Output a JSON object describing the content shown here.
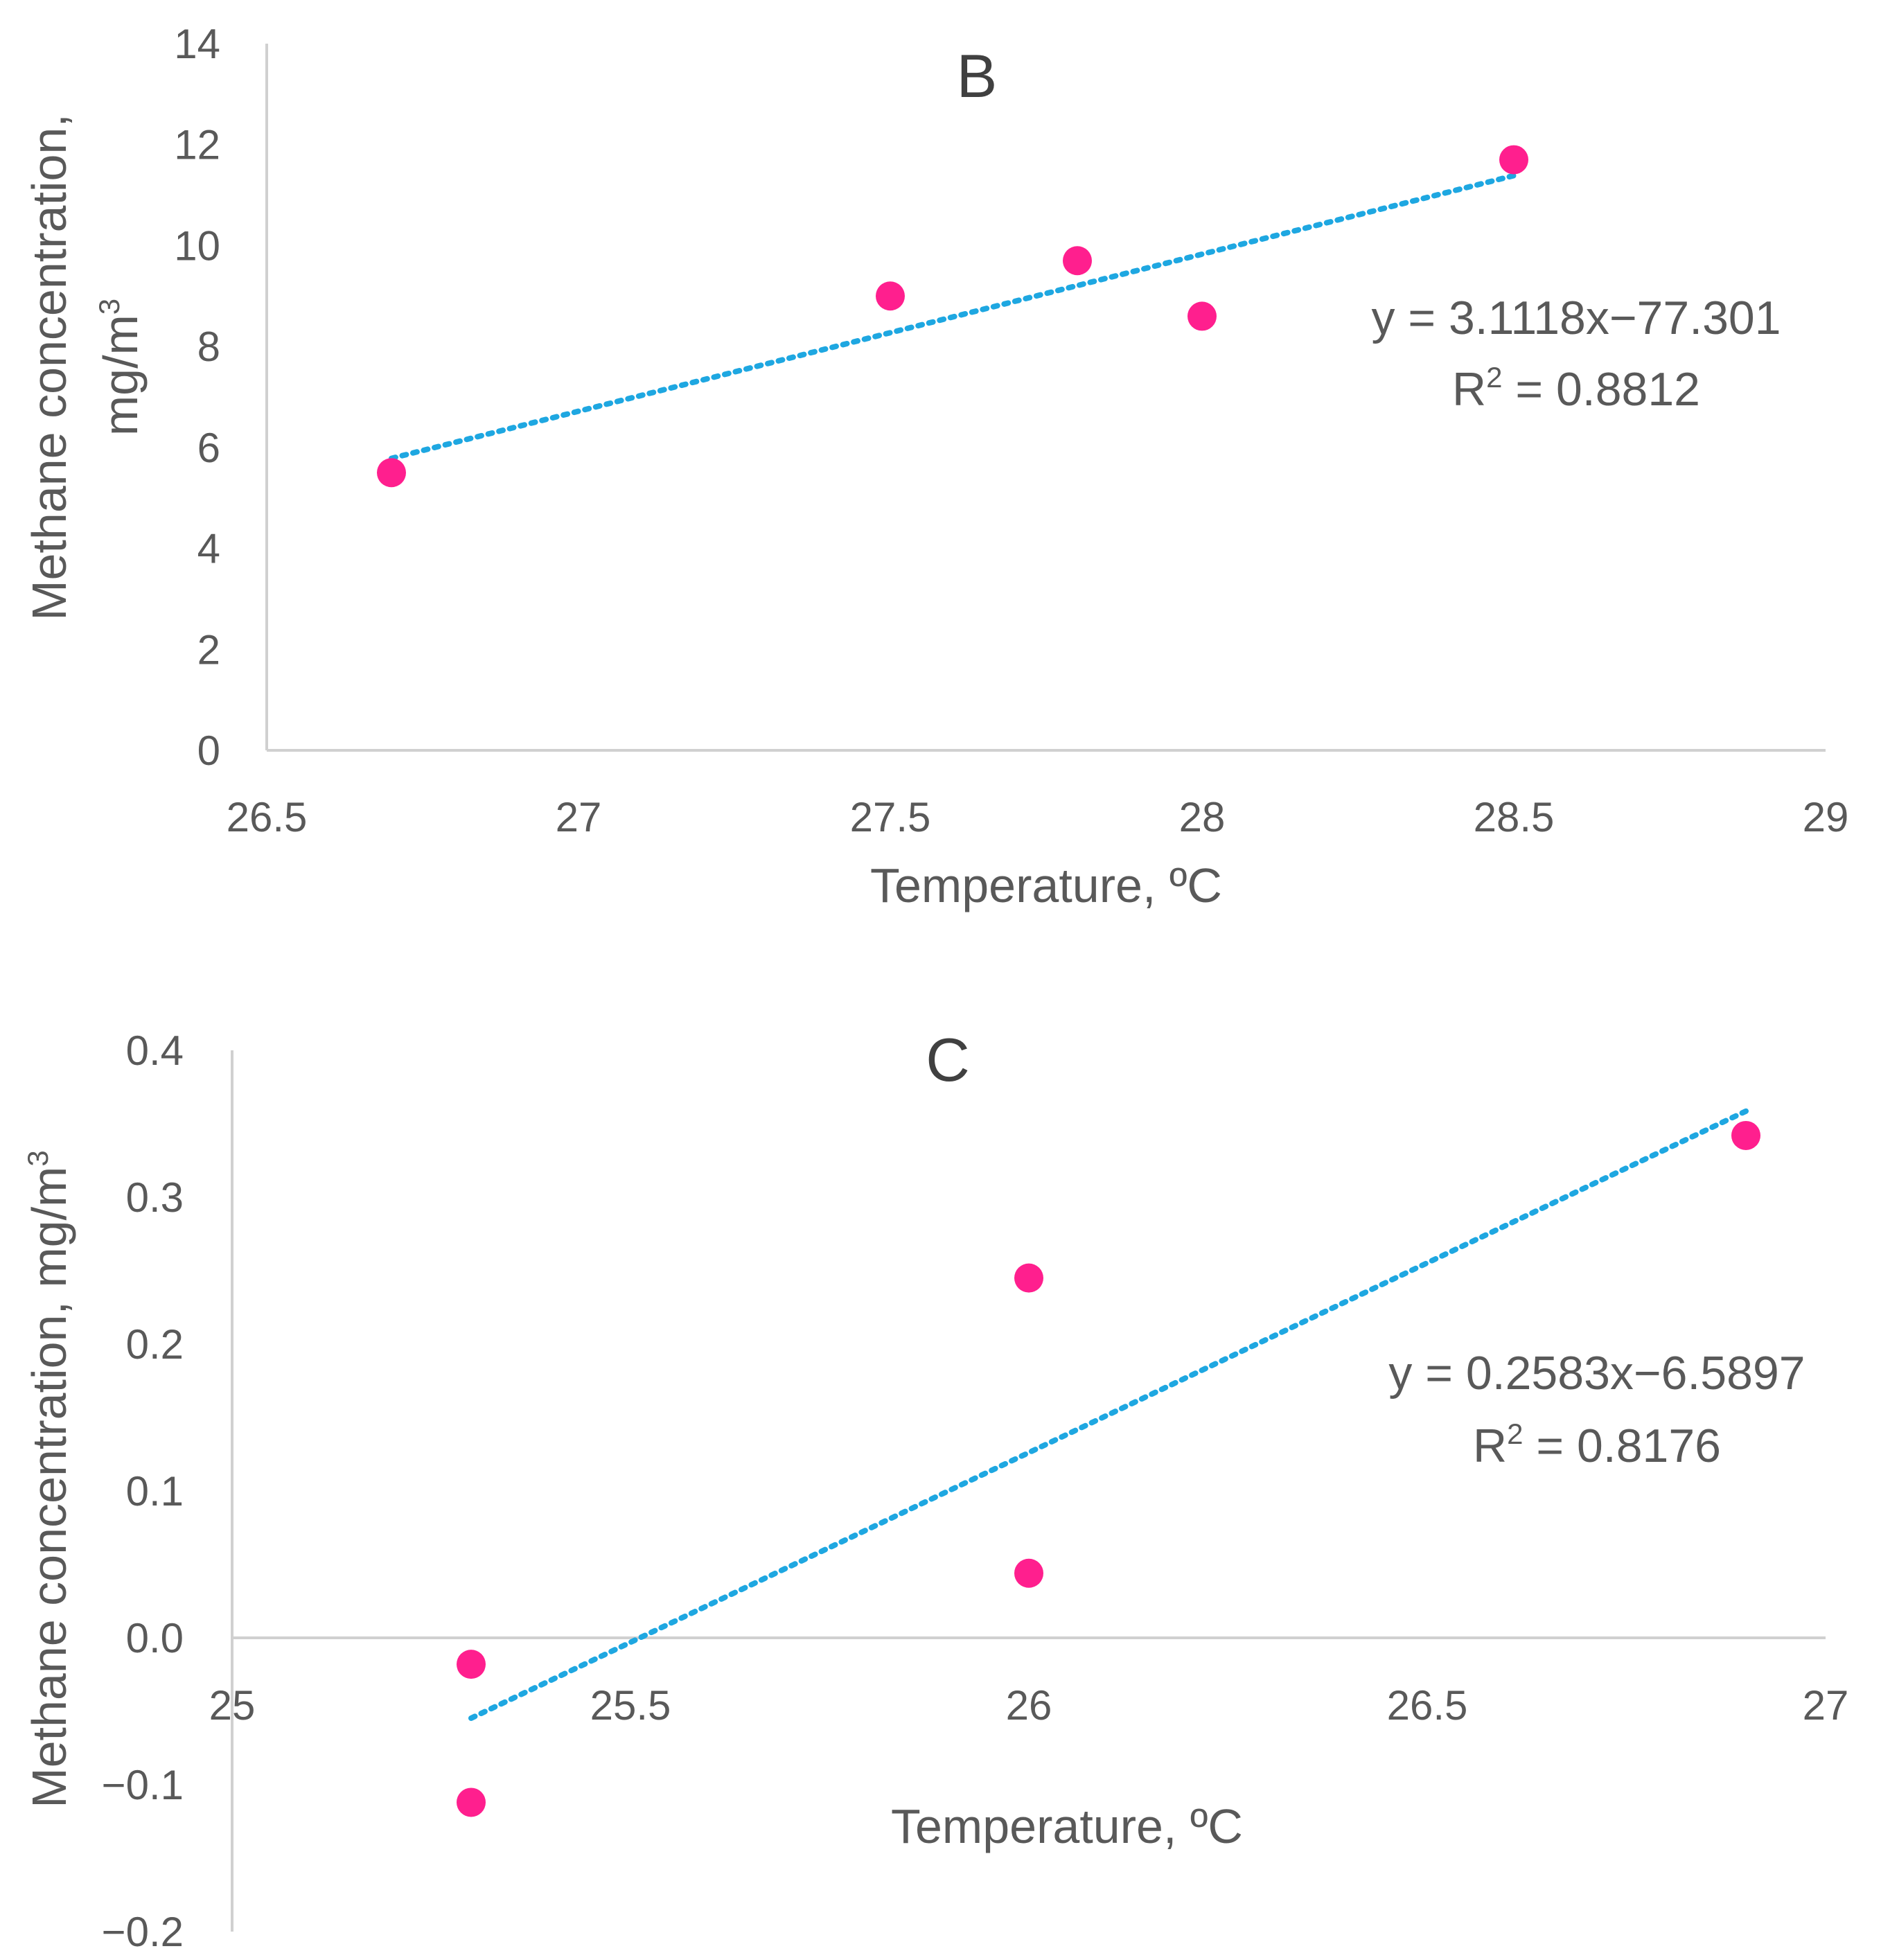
{
  "chart_data": [
    {
      "type": "scatter",
      "panel_label": "B",
      "xlabel": "Temperature, ºC",
      "ylabel_line1": "Methane concentration,",
      "ylabel_line2": "mg/m",
      "ylabel_sup": "3",
      "xlim": [
        26.5,
        29
      ],
      "ylim": [
        0,
        14
      ],
      "xticks": [
        26.5,
        27,
        27.5,
        28,
        28.5,
        29
      ],
      "xtick_labels": [
        "26.5",
        "27",
        "27.5",
        "28",
        "28.5",
        "29"
      ],
      "yticks": [
        0,
        2,
        4,
        6,
        8,
        10,
        12,
        14
      ],
      "ytick_labels": [
        "0",
        "2",
        "4",
        "6",
        "8",
        "10",
        "12",
        "14"
      ],
      "x": [
        26.7,
        27.5,
        27.8,
        28.0,
        28.5
      ],
      "y": [
        5.5,
        9.0,
        9.7,
        8.6,
        11.7
      ],
      "trendline": {
        "slope": 3.1118,
        "intercept": -77.301,
        "x_range": [
          26.7,
          28.5
        ]
      },
      "equation": "y = 3.1118x−77.301",
      "r2_label": "R",
      "r2_sup": "2",
      "r2_value": " = 0.8812",
      "point_color": "#ff1f8e",
      "trend_color": "#1ea7e1"
    },
    {
      "type": "scatter",
      "panel_label": "C",
      "xlabel": "Temperature, ºC",
      "ylabel_line1": "Methane concentration, mg/m",
      "ylabel_sup": "3",
      "xlim": [
        25,
        27
      ],
      "ylim": [
        -0.2,
        0.4
      ],
      "xticks": [
        25,
        25.5,
        26,
        26.5,
        27
      ],
      "xtick_labels": [
        "25",
        "25.5",
        "26",
        "26.5",
        "27"
      ],
      "yticks": [
        -0.2,
        -0.1,
        0.0,
        0.1,
        0.2,
        0.3,
        0.4
      ],
      "ytick_labels": [
        "−0.2",
        "−0.1",
        "0.0",
        "0.1",
        "0.2",
        "0.3",
        "0.4"
      ],
      "x": [
        25.3,
        25.3,
        26.0,
        26.0,
        26.9
      ],
      "y": [
        -0.018,
        -0.112,
        0.044,
        0.245,
        0.342
      ],
      "trendline": {
        "slope": 0.2583,
        "intercept": -6.5897,
        "x_range": [
          25.3,
          26.9
        ]
      },
      "equation": "y = 0.2583x−6.5897",
      "r2_label": "R",
      "r2_sup": "2",
      "r2_value": " = 0.8176",
      "point_color": "#ff1f8e",
      "trend_color": "#1ea7e1"
    }
  ]
}
